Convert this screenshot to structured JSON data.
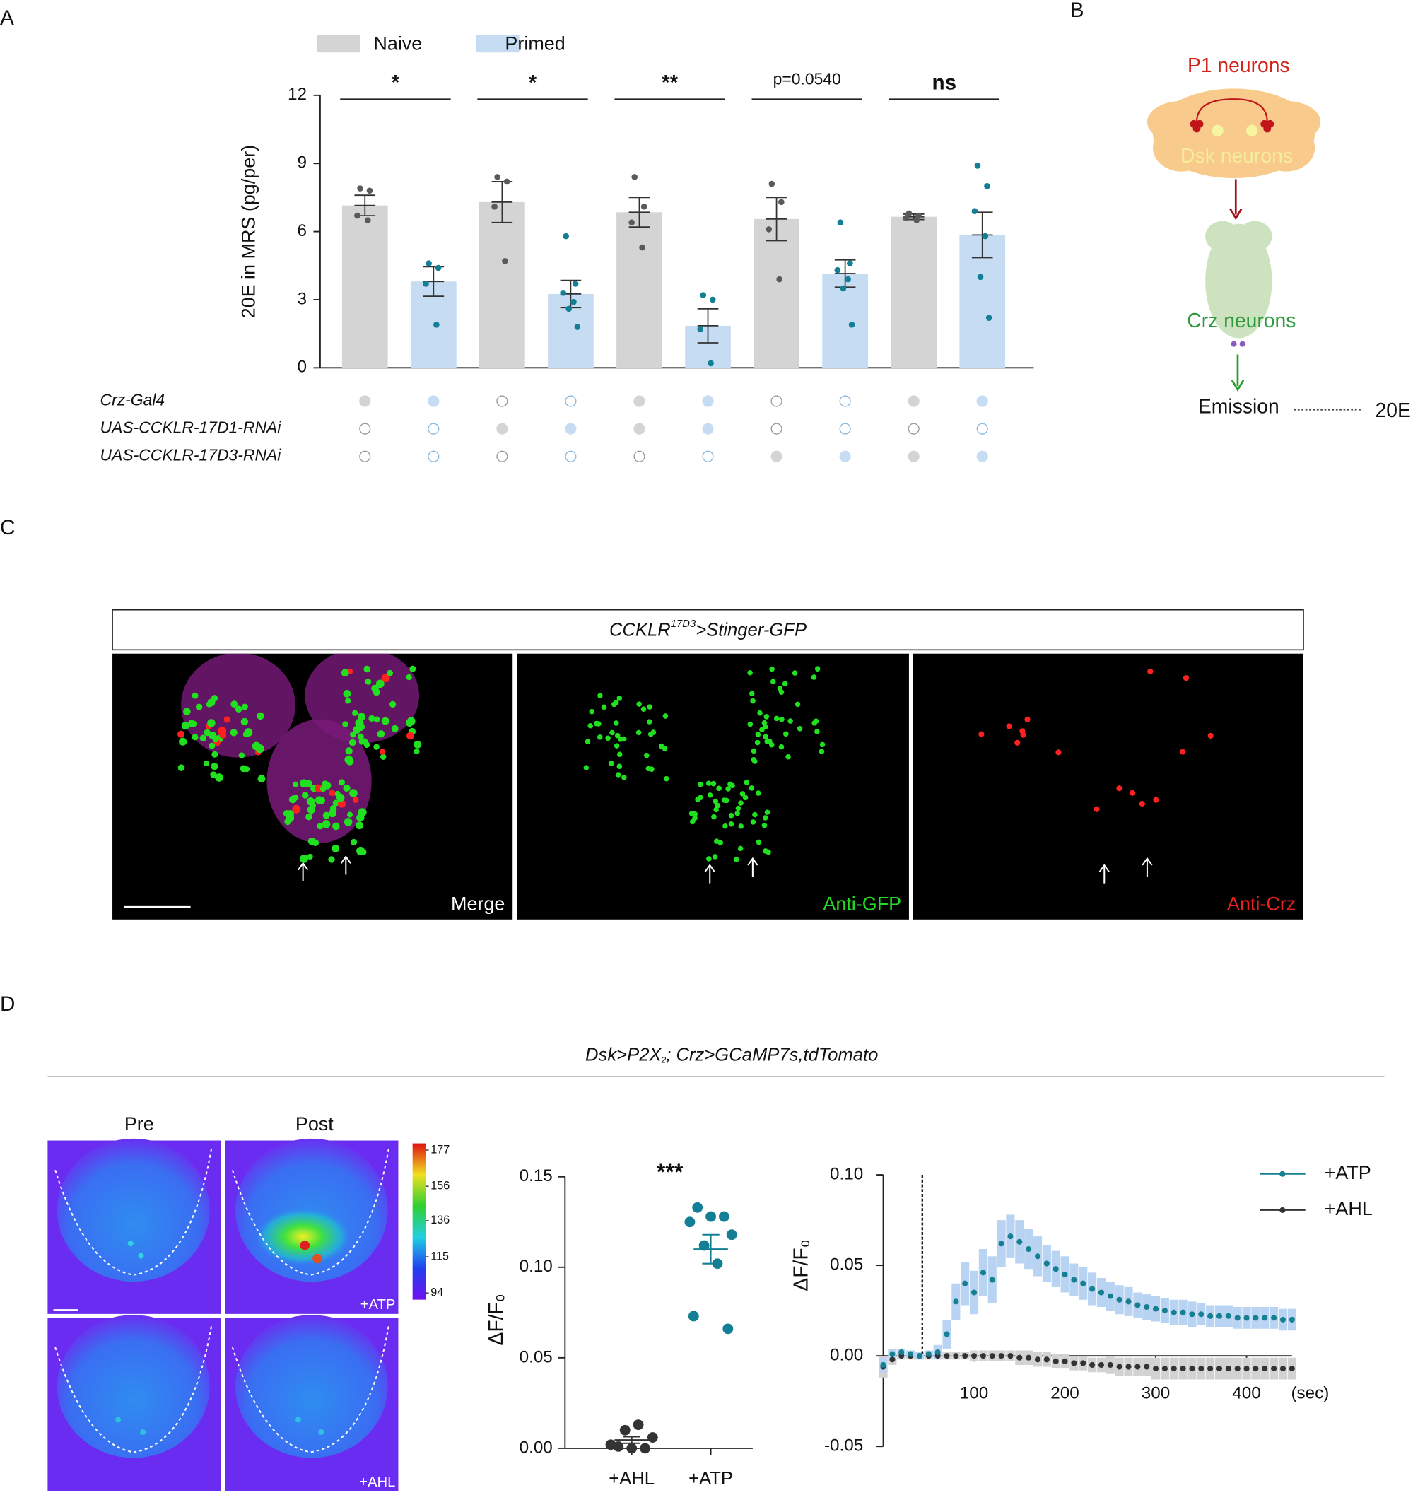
{
  "panel_labels": [
    "A",
    "B",
    "C",
    "D"
  ],
  "chart_data": [
    {
      "type": "bar",
      "categories": [
        null,
        null,
        null,
        null,
        null
      ],
      "y_label": "20E in MRS (pg/per)",
      "ylim": [
        0,
        12
      ],
      "yticks": [
        0,
        3,
        6,
        9,
        12
      ],
      "legend": "top",
      "grid": false,
      "series": [
        {
          "name": "Naive",
          "color": "#d4d4d4",
          "point_color": "#5a5a5a",
          "empty_stroke": "#9a9a9a",
          "values": [
            7.15,
            7.3,
            6.85,
            6.55,
            6.65
          ],
          "errors": [
            0.45,
            0.9,
            0.65,
            0.95,
            0.12
          ],
          "points": [
            [
              7.9,
              7.8,
              6.7,
              6.5
            ],
            [
              8.4,
              8.2,
              7.1,
              4.7
            ],
            [
              8.4,
              7.1,
              6.4,
              5.3
            ],
            [
              8.1,
              7.3,
              6.1,
              3.9
            ],
            [
              6.8,
              6.7,
              6.6,
              6.5
            ]
          ]
        },
        {
          "name": "Primed",
          "color": "#c6dcf3",
          "point_color": "#137f95",
          "empty_stroke": "#8cb9e2",
          "values": [
            3.8,
            3.25,
            1.85,
            4.15,
            5.85
          ],
          "errors": [
            0.65,
            0.6,
            0.75,
            0.6,
            1.0
          ],
          "points": [
            [
              4.6,
              4.4,
              3.7,
              1.9
            ],
            [
              5.8,
              3.7,
              3.3,
              2.9,
              2.6,
              1.8
            ],
            [
              3.2,
              3.0,
              1.7,
              0.2
            ],
            [
              6.4,
              4.6,
              4.3,
              3.9,
              3.5,
              1.9
            ],
            [
              8.9,
              8.0,
              6.9,
              5.8,
              4.0,
              2.2
            ]
          ]
        }
      ],
      "annotations": [
        "*",
        "*",
        "**",
        "p=0.0540",
        "ns"
      ]
    },
    {
      "type": "strip",
      "title": "***",
      "y_label": "ΔF/F₀",
      "categories": [
        "+AHL",
        "+ATP"
      ],
      "ylim": [
        0,
        0.15
      ],
      "yticks": [
        {
          "value": 0,
          "label": "0.00"
        },
        {
          "value": 0.05,
          "label": "0.05"
        },
        {
          "value": 0.1,
          "label": "0.10"
        },
        {
          "value": 0.15,
          "label": "0.15"
        }
      ],
      "colors": [
        "#333333",
        "#137f95"
      ],
      "points": [
        [
          0.001,
          0.0,
          0.0,
          0.002,
          0.006,
          0.01,
          0.013
        ],
        [
          0.133,
          0.128,
          0.128,
          0.125,
          0.118,
          0.112,
          0.102,
          0.073,
          0.066
        ]
      ],
      "means": [
        0.0046,
        0.11
      ],
      "errors": [
        0.0018,
        0.008
      ]
    },
    {
      "type": "scatter",
      "x_label": "(sec)",
      "y_label": "ΔF/F₀",
      "xlim": [
        0,
        450
      ],
      "xticks": [
        100,
        200,
        300,
        400
      ],
      "ylim": [
        -0.05,
        0.1
      ],
      "yticks": [
        {
          "value": -0.05,
          "label": "-0.05"
        },
        {
          "value": 0,
          "label": "0.00"
        },
        {
          "value": 0.05,
          "label": "0.05"
        },
        {
          "value": 0.1,
          "label": "0.10"
        }
      ],
      "stimulus_x": 43,
      "legend": "top-right",
      "x": [
        0,
        10,
        20,
        30,
        40,
        50,
        60,
        70,
        80,
        90,
        100,
        110,
        120,
        130,
        140,
        150,
        160,
        170,
        180,
        190,
        200,
        210,
        220,
        230,
        240,
        250,
        260,
        270,
        280,
        290,
        300,
        310,
        320,
        330,
        340,
        350,
        360,
        370,
        380,
        390,
        400,
        410,
        420,
        430,
        440,
        450
      ],
      "series": [
        {
          "name": "+ATP",
          "color": "#167f92",
          "band_color": "#b9d4f3",
          "values": [
            -0.005,
            0.001,
            0.002,
            0.001,
            0.0,
            0.001,
            0.002,
            0.012,
            0.03,
            0.04,
            0.035,
            0.046,
            0.042,
            0.062,
            0.066,
            0.063,
            0.059,
            0.055,
            0.051,
            0.048,
            0.045,
            0.042,
            0.04,
            0.037,
            0.035,
            0.033,
            0.031,
            0.03,
            0.028,
            0.027,
            0.026,
            0.025,
            0.024,
            0.024,
            0.023,
            0.023,
            0.022,
            0.022,
            0.022,
            0.021,
            0.021,
            0.021,
            0.021,
            0.021,
            0.02,
            0.02
          ],
          "errors": [
            0.004,
            0.003,
            0.002,
            0.002,
            0.002,
            0.002,
            0.004,
            0.008,
            0.01,
            0.012,
            0.012,
            0.013,
            0.013,
            0.013,
            0.012,
            0.012,
            0.011,
            0.011,
            0.01,
            0.01,
            0.01,
            0.009,
            0.009,
            0.009,
            0.008,
            0.008,
            0.008,
            0.008,
            0.007,
            0.007,
            0.007,
            0.007,
            0.007,
            0.007,
            0.007,
            0.006,
            0.006,
            0.006,
            0.006,
            0.006,
            0.006,
            0.006,
            0.006,
            0.006,
            0.006,
            0.006
          ]
        },
        {
          "name": "+AHL",
          "color": "#333333",
          "band_color": "#d2d2d2",
          "values": [
            -0.006,
            -0.002,
            0.0,
            0.0,
            0.0,
            0.0,
            0.0,
            0.0,
            0.0,
            0.0,
            0.0,
            0.0,
            0.0,
            0.0,
            0.0,
            -0.001,
            -0.001,
            -0.002,
            -0.002,
            -0.003,
            -0.003,
            -0.004,
            -0.004,
            -0.005,
            -0.005,
            -0.005,
            -0.006,
            -0.006,
            -0.006,
            -0.006,
            -0.007,
            -0.007,
            -0.007,
            -0.007,
            -0.007,
            -0.007,
            -0.007,
            -0.007,
            -0.007,
            -0.007,
            -0.007,
            -0.007,
            -0.007,
            -0.007,
            -0.007,
            -0.007
          ],
          "errors": [
            0.006,
            0.003,
            0.002,
            0.002,
            0.002,
            0.002,
            0.002,
            0.002,
            0.002,
            0.002,
            0.003,
            0.003,
            0.003,
            0.003,
            0.003,
            0.004,
            0.004,
            0.004,
            0.004,
            0.004,
            0.004,
            0.004,
            0.004,
            0.004,
            0.004,
            0.005,
            0.005,
            0.005,
            0.005,
            0.005,
            0.006,
            0.006,
            0.006,
            0.006,
            0.006,
            0.006,
            0.006,
            0.006,
            0.006,
            0.006,
            0.006,
            0.006,
            0.006,
            0.006,
            0.006,
            0.006
          ]
        }
      ]
    }
  ],
  "genotype_table": {
    "rows": [
      {
        "label": "Crz-Gal4",
        "filled": [
          true,
          true,
          false,
          false,
          true,
          true,
          false,
          false,
          true,
          true
        ]
      },
      {
        "label": "UAS-CCKLR-17D1-RNAi",
        "filled": [
          false,
          false,
          true,
          true,
          true,
          true,
          false,
          false,
          false,
          false
        ]
      },
      {
        "label": "UAS-CCKLR-17D3-RNAi",
        "filled": [
          false,
          false,
          false,
          false,
          false,
          false,
          true,
          true,
          true,
          true
        ]
      }
    ]
  },
  "diagram": {
    "labels": [
      "P1 neurons",
      "Dsk neurons",
      "Crz neurons",
      "Emission",
      "20E"
    ]
  },
  "micrograph": {
    "title_parts": [
      "CCKLR",
      "17D3",
      ">Stinger-GFP"
    ],
    "panels": [
      "Merge",
      "Anti-GFP",
      "Anti-Crz"
    ]
  },
  "imaging": {
    "title_parts": [
      "Dsk>P2X",
      "2",
      "; Crz>GCaMP7s,tdTomato"
    ],
    "columns": [
      "Pre",
      "Post"
    ],
    "row_labels": [
      "+ATP",
      "+AHL"
    ],
    "colorbar_ticks": [
      177,
      156,
      136,
      115,
      94
    ]
  }
}
